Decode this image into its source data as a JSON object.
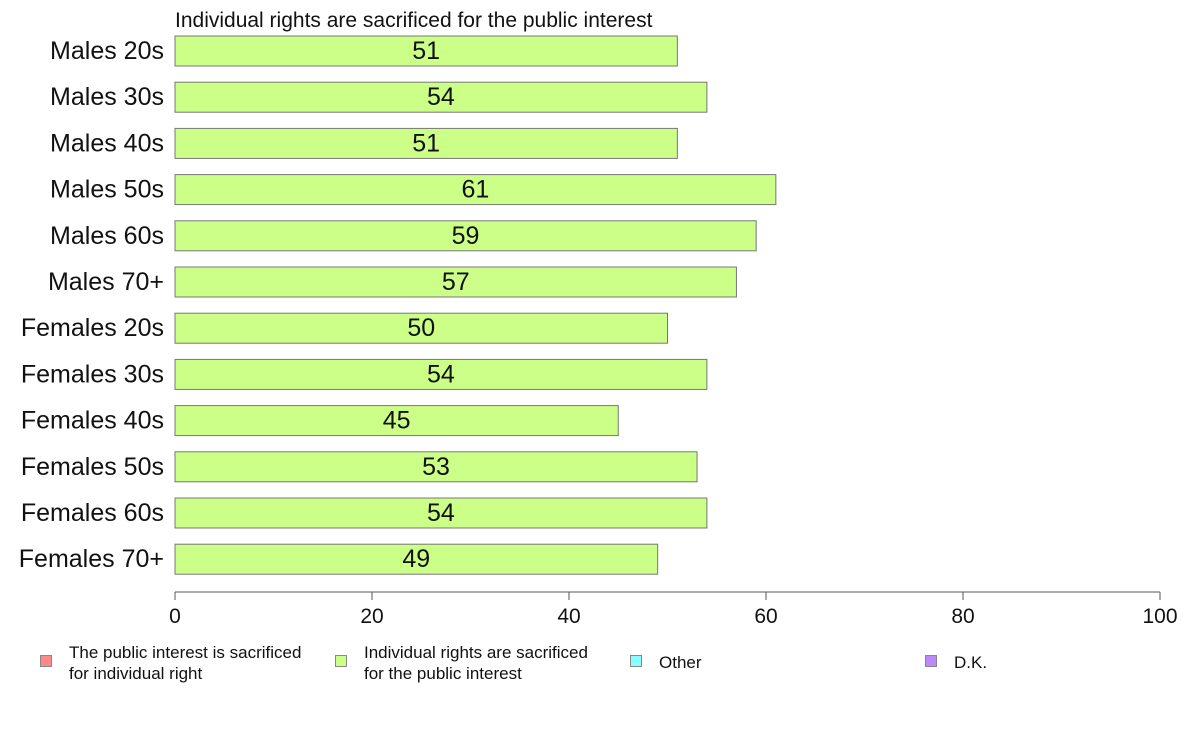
{
  "chart_data": {
    "type": "bar",
    "orientation": "horizontal",
    "title": "Individual rights are sacrificed for the public interest",
    "categories": [
      "Males 20s",
      "Males 30s",
      "Males 40s",
      "Males 50s",
      "Males 60s",
      "Males 70+",
      "Females 20s",
      "Females 30s",
      "Females 40s",
      "Females 50s",
      "Females 60s",
      "Females 70+"
    ],
    "values": [
      51,
      54,
      51,
      61,
      59,
      57,
      50,
      54,
      45,
      53,
      54,
      49
    ],
    "bar_color": "#ccff88",
    "xlim": [
      0,
      100
    ],
    "xticks": [
      0,
      20,
      40,
      60,
      80,
      100
    ],
    "legend": [
      {
        "label": "The public interest is sacrificed\nfor individual right",
        "color": "#ff8888"
      },
      {
        "label": "Individual rights are sacrificed\nfor the public interest",
        "color": "#ccff88"
      },
      {
        "label": "Other",
        "color": "#88ffff"
      },
      {
        "label": "D.K.",
        "color": "#bb88ff"
      }
    ]
  }
}
